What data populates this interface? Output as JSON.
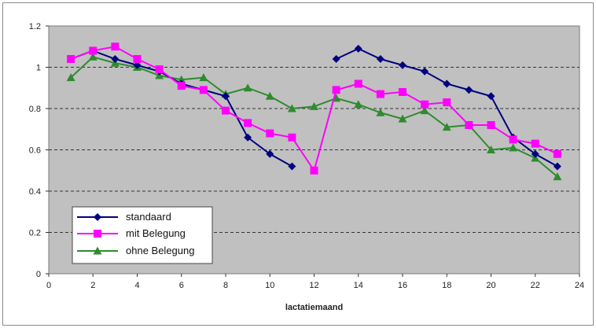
{
  "chart_data": {
    "type": "line",
    "xlabel": "lactatiemaand",
    "ylabel": "",
    "title": "",
    "xlim": [
      0,
      24
    ],
    "ylim": [
      0,
      1.2
    ],
    "xticks": [
      "0",
      "2",
      "4",
      "6",
      "8",
      "10",
      "12",
      "14",
      "16",
      "18",
      "20",
      "22",
      "24"
    ],
    "yticks": [
      "0",
      "0.2",
      "0.4",
      "0.6",
      "0.8",
      "1",
      "1.2"
    ],
    "grid": "horizontal dashed",
    "background": "#c0c0c0",
    "legend_position": "bottom-left",
    "series": [
      {
        "name": "standaard",
        "color": "#000080",
        "marker": "diamond",
        "segments": [
          [
            [
              1,
              1.04
            ],
            [
              2,
              1.08
            ],
            [
              3,
              1.04
            ],
            [
              4,
              1.01
            ],
            [
              5,
              0.98
            ],
            [
              6,
              0.92
            ],
            [
              7,
              0.89
            ],
            [
              8,
              0.86
            ],
            [
              9,
              0.66
            ],
            [
              10,
              0.58
            ],
            [
              11,
              0.52
            ]
          ],
          [
            [
              13,
              1.04
            ],
            [
              14,
              1.09
            ],
            [
              15,
              1.04
            ],
            [
              16,
              1.01
            ],
            [
              17,
              0.98
            ],
            [
              18,
              0.92
            ],
            [
              19,
              0.89
            ],
            [
              20,
              0.86
            ],
            [
              21,
              0.66
            ],
            [
              22,
              0.58
            ],
            [
              23,
              0.52
            ]
          ]
        ]
      },
      {
        "name": "mit Belegung",
        "color": "#ff00ff",
        "marker": "square",
        "segments": [
          [
            [
              1,
              1.04
            ],
            [
              2,
              1.08
            ],
            [
              3,
              1.1
            ],
            [
              4,
              1.04
            ],
            [
              5,
              0.99
            ],
            [
              6,
              0.91
            ],
            [
              7,
              0.89
            ],
            [
              8,
              0.79
            ],
            [
              9,
              0.73
            ],
            [
              10,
              0.68
            ],
            [
              11,
              0.66
            ],
            [
              12,
              0.5
            ],
            [
              13,
              0.89
            ],
            [
              14,
              0.92
            ],
            [
              15,
              0.87
            ],
            [
              16,
              0.88
            ],
            [
              17,
              0.82
            ],
            [
              18,
              0.83
            ],
            [
              19,
              0.72
            ],
            [
              20,
              0.72
            ],
            [
              21,
              0.65
            ],
            [
              22,
              0.63
            ],
            [
              23,
              0.58
            ]
          ]
        ]
      },
      {
        "name": "ohne Belegung",
        "color": "#2e8b2e",
        "marker": "triangle",
        "segments": [
          [
            [
              1,
              0.95
            ],
            [
              2,
              1.05
            ],
            [
              3,
              1.02
            ],
            [
              4,
              1.0
            ],
            [
              5,
              0.96
            ],
            [
              6,
              0.94
            ],
            [
              7,
              0.95
            ],
            [
              8,
              0.87
            ],
            [
              9,
              0.9
            ],
            [
              10,
              0.86
            ],
            [
              11,
              0.8
            ],
            [
              12,
              0.81
            ],
            [
              13,
              0.85
            ],
            [
              14,
              0.82
            ],
            [
              15,
              0.78
            ],
            [
              16,
              0.75
            ],
            [
              17,
              0.79
            ],
            [
              18,
              0.71
            ],
            [
              19,
              0.72
            ],
            [
              20,
              0.6
            ],
            [
              21,
              0.61
            ],
            [
              22,
              0.56
            ],
            [
              23,
              0.47
            ]
          ]
        ]
      }
    ]
  }
}
